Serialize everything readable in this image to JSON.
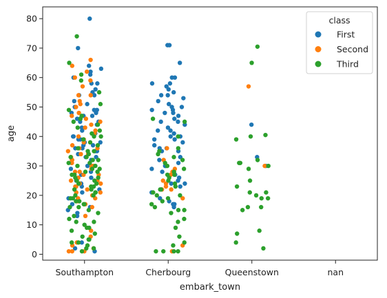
{
  "chart_data": {
    "type": "scatter",
    "plot_style": "strip",
    "x_label": "embark_town",
    "y_label": "age",
    "categories": [
      "Southampton",
      "Cherbourg",
      "Queenstown",
      "nan"
    ],
    "ylim": [
      -2,
      84
    ],
    "y_ticks": [
      0,
      10,
      20,
      30,
      40,
      50,
      60,
      70,
      80
    ],
    "grid": false,
    "legend": {
      "title": "class",
      "position": "top-right"
    },
    "series": [
      {
        "name": "First",
        "color": "#1f77b4",
        "points": [
          {
            "category": "Southampton",
            "ages": [
              80,
              70,
              64,
              63,
              62,
              61,
              60,
              58,
              58,
              56,
              55,
              54,
              54,
              52,
              51,
              50,
              50,
              49,
              49,
              48,
              48,
              47,
              47,
              46,
              46,
              45,
              45,
              44,
              43,
              42,
              41,
              40,
              40,
              39,
              39,
              38,
              38,
              37,
              37,
              36,
              36,
              35,
              35,
              34,
              33,
              33,
              32,
              31,
              30,
              29,
              28,
              27,
              26,
              25,
              24,
              24,
              23,
              22,
              21,
              19,
              18,
              17,
              16,
              15,
              14,
              13,
              4,
              2,
              1
            ]
          },
          {
            "category": "Cherbourg",
            "ages": [
              71,
              71,
              65,
              60,
              60,
              58,
              58,
              57,
              56,
              55,
              54,
              54,
              53,
              52,
              51,
              50,
              50,
              49,
              49,
              48,
              48,
              47,
              46,
              45,
              45,
              44,
              43,
              42,
              42,
              41,
              40,
              40,
              39,
              39,
              38,
              37,
              36,
              36,
              35,
              35,
              33,
              32,
              31,
              30,
              30,
              29,
              28,
              27,
              26,
              25,
              24,
              24,
              23,
              22,
              21,
              19,
              18,
              17,
              17,
              16
            ]
          },
          {
            "category": "Queenstown",
            "ages": [
              44,
              33,
              30
            ]
          }
        ]
      },
      {
        "name": "Second",
        "color": "#ff7f0e",
        "points": [
          {
            "category": "Southampton",
            "ages": [
              66,
              64,
              62,
              60,
              59,
              57,
              54,
              54,
              52,
              51,
              50,
              48,
              47,
              46,
              45,
              44,
              43,
              42,
              41,
              40,
              39,
              38,
              37,
              36,
              36,
              35,
              34,
              34,
              33,
              32,
              32,
              31,
              30,
              30,
              29,
              28,
              28,
              27,
              27,
              26,
              25,
              25,
              24,
              24,
              23,
              23,
              22,
              21,
              21,
              20,
              19,
              19,
              18,
              17,
              16,
              13,
              8,
              6,
              4,
              3,
              2,
              1,
              1,
              1
            ]
          },
          {
            "category": "Cherbourg",
            "ages": [
              36,
              32,
              29,
              28,
              27,
              25,
              24,
              23,
              22,
              22,
              19,
              3,
              1
            ]
          },
          {
            "category": "Queenstown",
            "ages": [
              57,
              30
            ]
          }
        ]
      },
      {
        "name": "Third",
        "color": "#2ca02c",
        "points": [
          {
            "category": "Southampton",
            "ages": [
              74,
              65,
              61,
              59,
              55,
              51,
              49,
              47,
              46,
              45,
              44,
              43,
              42,
              41,
              40,
              40,
              39,
              38,
              37,
              36,
              35,
              35,
              34,
              33,
              33,
              32,
              32,
              31,
              31,
              30,
              30,
              29,
              29,
              28,
              28,
              27,
              27,
              26,
              26,
              25,
              25,
              24,
              24,
              23,
              23,
              22,
              22,
              21,
              21,
              20,
              20,
              19,
              19,
              18,
              18,
              17,
              17,
              16,
              16,
              15,
              14,
              13,
              12,
              11,
              11,
              10,
              9,
              9,
              8,
              7,
              6,
              5,
              5,
              4,
              4,
              3,
              2,
              2,
              1
            ]
          },
          {
            "category": "Cherbourg",
            "ages": [
              46,
              45,
              40,
              36,
              35,
              34,
              33,
              32,
              31,
              30,
              29,
              28,
              27,
              27,
              26,
              25,
              24,
              23,
              22,
              22,
              21,
              20,
              20,
              19,
              18,
              17,
              16,
              15,
              15,
              14,
              12,
              11,
              9,
              6,
              4,
              3,
              1,
              1,
              1,
              1
            ]
          },
          {
            "category": "Queenstown",
            "ages": [
              70.5,
              65,
              40.5,
              40,
              39,
              32,
              31,
              31,
              30,
              29,
              25,
              23,
              21,
              21,
              20,
              19,
              19,
              16,
              16,
              15,
              8,
              7,
              4,
              2
            ]
          }
        ]
      }
    ]
  }
}
